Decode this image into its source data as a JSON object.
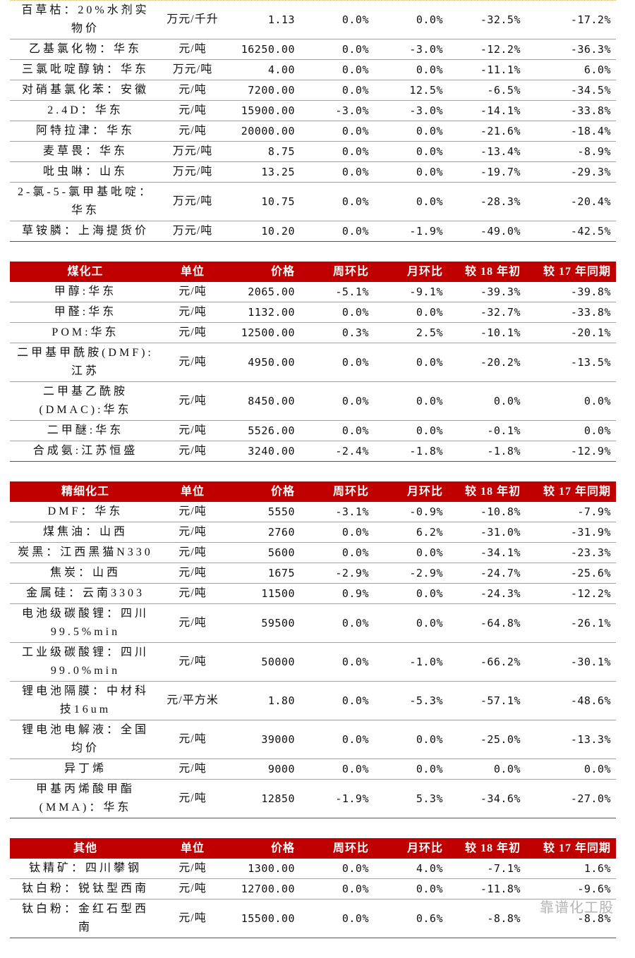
{
  "tables": [
    {
      "header": null,
      "rows": [
        [
          "百草枯：20%水剂实物价",
          "万元/千升",
          "1.13",
          "0.0%",
          "0.0%",
          "-32.5%",
          "-17.2%"
        ],
        [
          "乙基氯化物：华东",
          "元/吨",
          "16250.00",
          "0.0%",
          "-3.0%",
          "-12.2%",
          "-36.3%"
        ],
        [
          "三氯吡啶醇钠：华东",
          "万元/吨",
          "4.00",
          "0.0%",
          "0.0%",
          "-11.1%",
          "6.0%"
        ],
        [
          "对硝基氯化苯：安徽",
          "元/吨",
          "7200.00",
          "0.0%",
          "12.5%",
          "-6.5%",
          "-34.5%"
        ],
        [
          "2.4D：华东",
          "元/吨",
          "15900.00",
          "-3.0%",
          "-3.0%",
          "-14.1%",
          "-33.8%"
        ],
        [
          "阿特拉津：华东",
          "元/吨",
          "20000.00",
          "0.0%",
          "0.0%",
          "-21.6%",
          "-18.4%"
        ],
        [
          "麦草畏：华东",
          "万元/吨",
          "8.75",
          "0.0%",
          "0.0%",
          "-13.4%",
          "-8.9%"
        ],
        [
          "吡虫啉：山东",
          "万元/吨",
          "13.25",
          "0.0%",
          "0.0%",
          "-19.7%",
          "-29.3%"
        ],
        [
          "2-氯-5-氯甲基吡啶：华东",
          "万元/吨",
          "10.75",
          "0.0%",
          "0.0%",
          "-28.3%",
          "-20.4%"
        ],
        [
          "草铵膦：上海提货价",
          "万元/吨",
          "10.20",
          "0.0%",
          "-1.9%",
          "-49.0%",
          "-42.5%"
        ]
      ]
    },
    {
      "header": [
        "煤化工",
        "单位",
        "价格",
        "周环比",
        "月环比",
        "较 18 年初",
        "较 17 年同期"
      ],
      "rows": [
        [
          "甲醇:华东",
          "元/吨",
          "2065.00",
          "-5.1%",
          "-9.1%",
          "-39.3%",
          "-39.8%"
        ],
        [
          "甲醛:华东",
          "元/吨",
          "1132.00",
          "0.0%",
          "0.0%",
          "-32.7%",
          "-33.8%"
        ],
        [
          "POM:华东",
          "元/吨",
          "12500.00",
          "0.3%",
          "2.5%",
          "-10.1%",
          "-20.1%"
        ],
        [
          "二甲基甲酰胺(DMF):江苏",
          "元/吨",
          "4950.00",
          "0.0%",
          "0.0%",
          "-20.2%",
          "-13.5%"
        ],
        [
          "二甲基乙酰胺(DMAC):华东",
          "元/吨",
          "8450.00",
          "0.0%",
          "0.0%",
          "0.0%",
          "0.0%"
        ],
        [
          "二甲醚:华东",
          "元/吨",
          "5526.00",
          "0.0%",
          "0.0%",
          "-0.1%",
          "0.0%"
        ],
        [
          "合成氨:江苏恒盛",
          "元/吨",
          "3240.00",
          "-2.4%",
          "-1.8%",
          "-1.8%",
          "-12.9%"
        ]
      ]
    },
    {
      "header": [
        "精细化工",
        "单位",
        "价格",
        "周环比",
        "月环比",
        "较 18 年初",
        "较 17 年同期"
      ],
      "rows": [
        [
          "DMF：华东",
          "元/吨",
          "5550",
          "-3.1%",
          "-0.9%",
          "-10.8%",
          "-7.9%"
        ],
        [
          "煤焦油：山西",
          "元/吨",
          "2760",
          "0.0%",
          "6.2%",
          "-31.0%",
          "-31.9%"
        ],
        [
          "炭黑：江西黑猫N330",
          "元/吨",
          "5600",
          "0.0%",
          "0.0%",
          "-34.1%",
          "-23.3%"
        ],
        [
          "焦炭：山西",
          "元/吨",
          "1675",
          "-2.9%",
          "-2.9%",
          "-24.7%",
          "-25.6%"
        ],
        [
          "金属硅：云南3303",
          "元/吨",
          "11500",
          "0.9%",
          "0.0%",
          "-24.3%",
          "-12.2%"
        ],
        [
          "电池级碳酸锂：四川99.5%min",
          "元/吨",
          "59500",
          "0.0%",
          "0.0%",
          "-64.8%",
          "-26.1%"
        ],
        [
          "工业级碳酸锂：四川99.0%min",
          "元/吨",
          "50000",
          "0.0%",
          "-1.0%",
          "-66.2%",
          "-30.1%"
        ],
        [
          "锂电池隔膜：中材科技16um",
          "元/平方米",
          "1.80",
          "0.0%",
          "-5.3%",
          "-57.1%",
          "-48.6%"
        ],
        [
          "锂电池电解液：全国均价",
          "元/吨",
          "39000",
          "0.0%",
          "0.0%",
          "-25.0%",
          "-13.3%"
        ],
        [
          "异丁烯",
          "元/吨",
          "9000",
          "0.0%",
          "0.0%",
          "0.0%",
          "0.0%"
        ],
        [
          "甲基丙烯酸甲酯(MMA)：华东",
          "元/吨",
          "12850",
          "-1.9%",
          "5.3%",
          "-34.6%",
          "-27.0%"
        ]
      ]
    },
    {
      "header": [
        "其他",
        "单位",
        "价格",
        "周环比",
        "月环比",
        "较 18 年初",
        "较 17 年同期"
      ],
      "rows": [
        [
          "钛精矿：四川攀钢",
          "元/吨",
          "1300.00",
          "0.0%",
          "4.0%",
          "-7.1%",
          "1.6%"
        ],
        [
          "钛白粉：锐钛型西南",
          "元/吨",
          "12700.00",
          "0.0%",
          "0.0%",
          "-11.8%",
          "-9.6%"
        ],
        [
          "钛白粉：金红石型西南",
          "元/吨",
          "15500.00",
          "0.0%",
          "0.6%",
          "-8.8%",
          "-8.8%"
        ]
      ]
    }
  ],
  "watermark": "靠谱化工股"
}
